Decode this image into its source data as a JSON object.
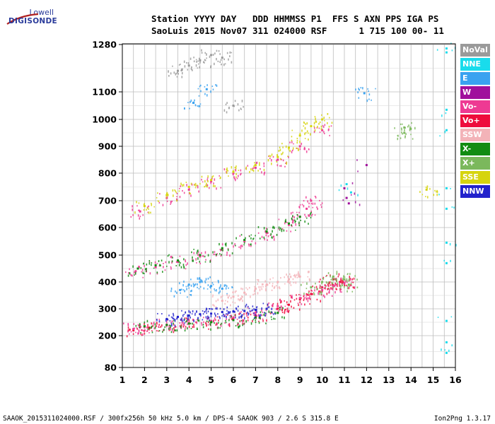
{
  "logo": {
    "top": "Lowell",
    "main": "DIGISONDE"
  },
  "header": {
    "line1": "Station YYYY DAY   DDD HHMMSS P1  FFS S AXN PPS IGA PS",
    "line2": "SaoLuis 2015 Nov07 311 024000 RSF      1 715 100 00- 11"
  },
  "footer": {
    "left": "SAAOK_2015311024000.RSF / 300fx256h 50 kHz 5.0 km / DPS-4 SAAOK 903 / 2.6 S 315.8 E",
    "right": "Ion2Png 1.3.17"
  },
  "legend": [
    {
      "label": "NoVal",
      "color": "#9a9a9a"
    },
    {
      "label": "NNE",
      "color": "#19dcec"
    },
    {
      "label": "E",
      "color": "#3aa2f0"
    },
    {
      "label": "W",
      "color": "#a0109c"
    },
    {
      "label": "Vo-",
      "color": "#ee3a93"
    },
    {
      "label": "Vo+",
      "color": "#ee0c3c"
    },
    {
      "label": "SSW",
      "color": "#f3b3b8"
    },
    {
      "label": "X-",
      "color": "#128c12"
    },
    {
      "label": "X+",
      "color": "#7bb85c"
    },
    {
      "label": "SSE",
      "color": "#d6d40e"
    },
    {
      "label": "NNW",
      "color": "#2222cc"
    }
  ],
  "chart_data": {
    "type": "scatter",
    "title": "",
    "xlabel": "",
    "ylabel": "",
    "xlim": [
      1,
      16
    ],
    "ylim": [
      80,
      1280
    ],
    "x_ticks": [
      "1",
      "2",
      "3",
      "4",
      "5",
      "6",
      "7",
      "8",
      "9",
      "10",
      "11",
      "12",
      "13",
      "14",
      "15",
      "16"
    ],
    "y_ticks": [
      "80",
      "200",
      "300",
      "400",
      "500",
      "600",
      "700",
      "800",
      "900",
      "1000",
      "1100",
      "1280"
    ],
    "y_tick_values": [
      80,
      200,
      300,
      400,
      500,
      600,
      700,
      800,
      900,
      1000,
      1100,
      1280
    ],
    "grid": true,
    "legend_position": "right",
    "series": [
      {
        "name": "Vo+",
        "color": "#ee0c3c",
        "x": [
          1.5,
          2.2,
          3.0,
          4.0,
          5.0,
          6.0,
          7.0,
          8.0,
          8.5,
          9.0,
          9.5,
          10.0,
          10.3,
          10.5,
          10.8,
          11.0
        ],
        "y": [
          220,
          230,
          240,
          245,
          250,
          262,
          275,
          300,
          315,
          335,
          355,
          380,
          395,
          410,
          400,
          395
        ]
      },
      {
        "name": "Vo-",
        "color": "#ee3a93",
        "x": [
          1.5,
          2.0,
          3.0,
          4.0,
          5.0,
          6.0,
          7.0,
          8.0,
          9.0,
          10.0,
          10.5,
          11.0,
          1.6,
          2.5,
          3.5,
          4.5,
          5.5,
          6.5,
          7.5,
          8.5,
          9.0,
          9.3,
          9.5,
          1.8,
          3.0,
          4.0,
          5.0,
          6.0,
          7.0,
          8.0,
          9.0,
          10.0
        ],
        "y": [
          225,
          232,
          240,
          248,
          255,
          268,
          285,
          310,
          340,
          370,
          385,
          395,
          440,
          455,
          475,
          495,
          520,
          550,
          580,
          610,
          640,
          670,
          700,
          660,
          710,
          740,
          770,
          800,
          820,
          850,
          900,
          960
        ]
      },
      {
        "name": "X-",
        "color": "#128c12",
        "x": [
          1.7,
          2.5,
          3.5,
          4.5,
          5.5,
          6.5,
          7.5,
          8.5,
          9.0,
          2.0,
          3.0,
          4.0,
          5.0,
          6.0,
          7.0,
          8.0
        ],
        "y": [
          450,
          462,
          480,
          500,
          525,
          555,
          585,
          615,
          640,
          235,
          240,
          245,
          250,
          258,
          268,
          285
        ]
      },
      {
        "name": "X+",
        "color": "#7bb85c",
        "x": [
          9.5,
          10.0,
          10.5,
          11.0,
          11.2,
          13.7,
          13.7
        ],
        "y": [
          380,
          400,
          420,
          410,
          390,
          950,
          970
        ]
      },
      {
        "name": "SSE",
        "color": "#d6d40e",
        "x": [
          2.0,
          3.0,
          4.0,
          5.0,
          6.0,
          7.0,
          8.0,
          8.5,
          9.0,
          9.5,
          10.0,
          14.7
        ],
        "y": [
          680,
          720,
          750,
          775,
          805,
          830,
          860,
          895,
          940,
          975,
          1000,
          740
        ]
      },
      {
        "name": "NNE",
        "color": "#19dcec",
        "x": [
          15.6,
          15.6,
          15.6,
          15.6,
          15.6,
          15.6,
          15.6,
          15.6,
          15.6,
          15.6,
          15.6,
          11.3,
          11.1
        ],
        "y": [
          135,
          175,
          255,
          470,
          545,
          670,
          745,
          960,
          1035,
          1250,
          1265,
          730,
          760
        ]
      },
      {
        "name": "E",
        "color": "#3aa2f0",
        "x": [
          3.6,
          4.0,
          4.5,
          5.0,
          5.5,
          4.2,
          4.8,
          11.9
        ],
        "y": [
          370,
          390,
          400,
          385,
          375,
          1060,
          1110,
          1095
        ]
      },
      {
        "name": "W",
        "color": "#a0109c",
        "x": [
          11.1,
          11.2,
          12.0,
          11.0
        ],
        "y": [
          710,
          690,
          830,
          745
        ]
      },
      {
        "name": "NNW",
        "color": "#2222cc",
        "x": [
          3.0,
          3.5,
          4.0,
          4.5,
          5.0,
          5.5,
          6.0,
          6.5,
          7.0,
          7.5
        ],
        "y": [
          262,
          270,
          275,
          280,
          282,
          288,
          290,
          292,
          296,
          300
        ]
      },
      {
        "name": "SSW",
        "color": "#f3b3b8",
        "x": [
          5.5,
          6.0,
          6.5,
          7.0,
          7.5,
          8.0,
          8.5,
          9.0
        ],
        "y": [
          330,
          345,
          360,
          375,
          390,
          400,
          410,
          420
        ]
      },
      {
        "name": "NoVal",
        "color": "#9a9a9a",
        "x": [
          3.5,
          4.0,
          4.5,
          5.0,
          5.5,
          6.0
        ],
        "y": [
          1180,
          1200,
          1220,
          1240,
          1230,
          1050
        ]
      }
    ]
  }
}
